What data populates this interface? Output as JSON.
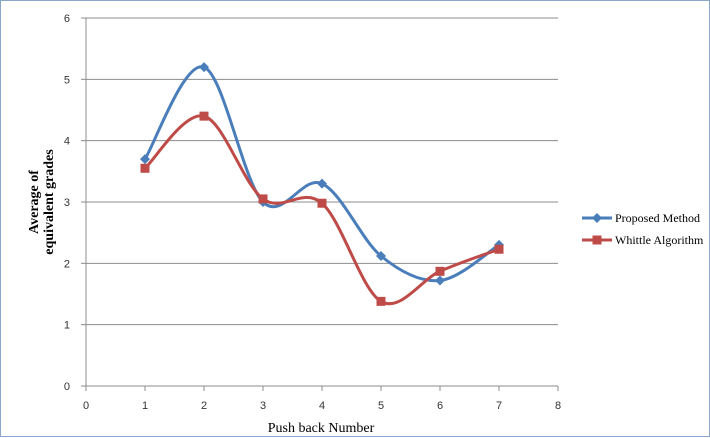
{
  "chart_data": {
    "type": "line",
    "smooth": true,
    "x": [
      1,
      2,
      3,
      4,
      5,
      6,
      7
    ],
    "series": [
      {
        "name": "Proposed Method",
        "values": [
          3.7,
          5.2,
          3.0,
          3.3,
          2.12,
          1.72,
          2.3
        ],
        "color": "#4a7ebb",
        "marker": "diamond"
      },
      {
        "name": "Whittle Algorithm",
        "values": [
          3.55,
          4.4,
          3.05,
          2.98,
          1.38,
          1.87,
          2.23
        ],
        "color": "#be4b48",
        "marker": "square"
      }
    ],
    "xlabel": "Push back Number",
    "ylabel_lines": [
      "Average of",
      "equivalent  grades"
    ],
    "xlim": [
      0,
      8
    ],
    "ylim": [
      0,
      6
    ],
    "xticks": [
      "0",
      "1",
      "2",
      "3",
      "4",
      "5",
      "6",
      "7",
      "8"
    ],
    "yticks": [
      "0",
      "1",
      "2",
      "3",
      "4",
      "5",
      "6"
    ],
    "grid": "horizontal",
    "legend_position": "right"
  }
}
